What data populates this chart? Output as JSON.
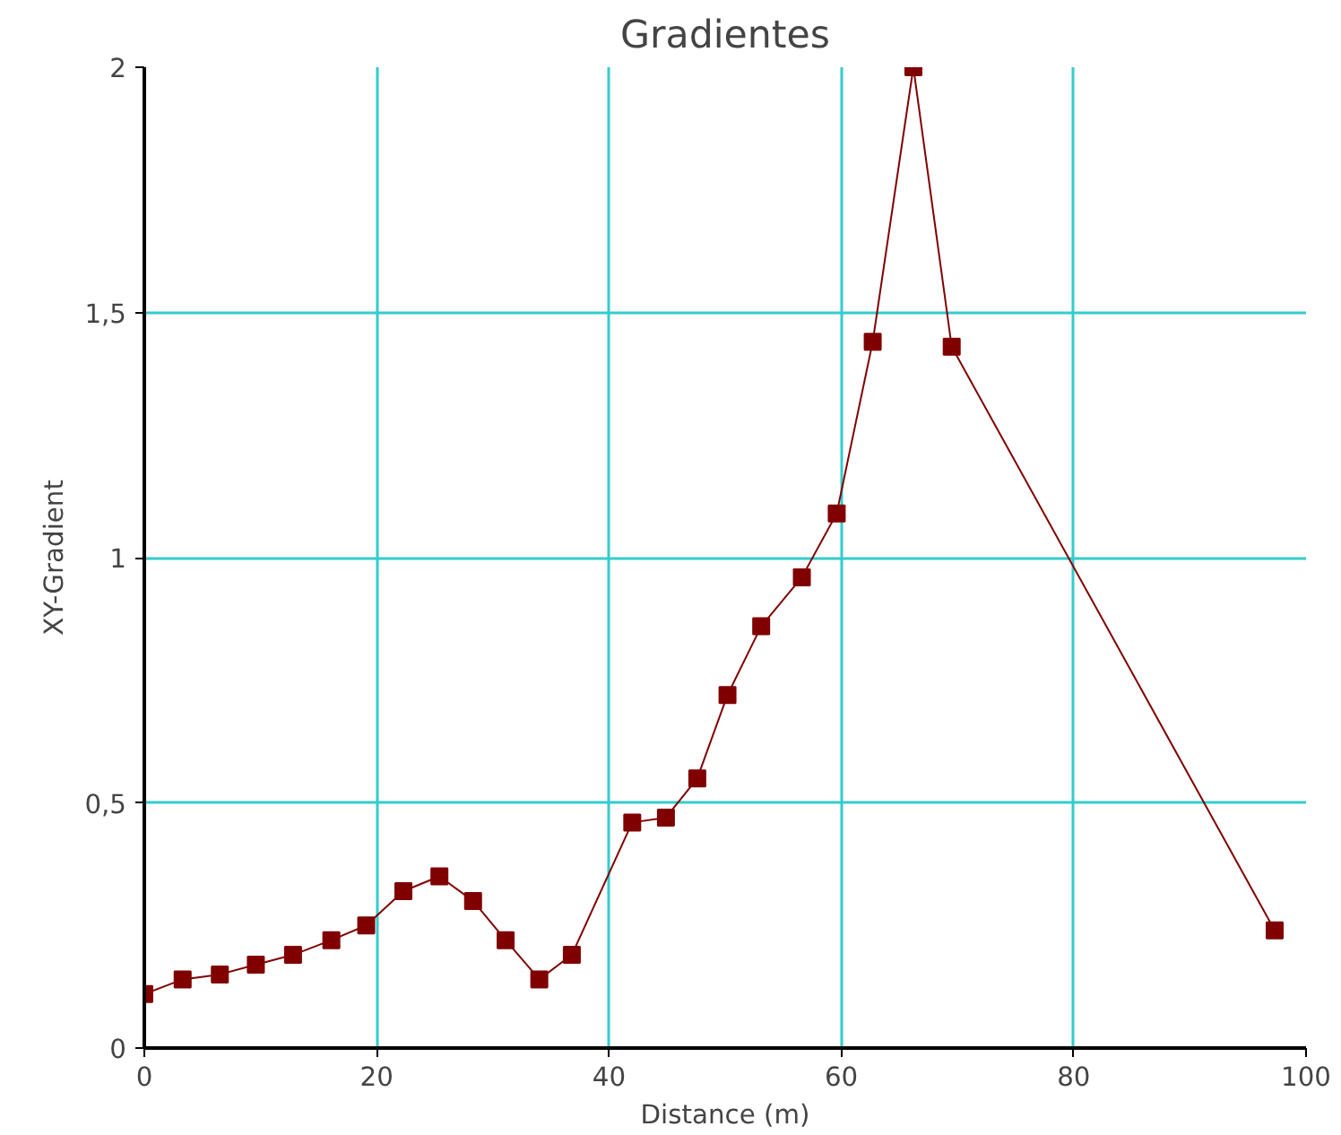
{
  "chart_data": {
    "type": "line",
    "title": "Gradientes",
    "xlabel": "Distance (m)",
    "ylabel": "XY-Gradient",
    "x": [
      0,
      3.3,
      6.5,
      9.6,
      12.8,
      16.1,
      19.1,
      22.3,
      25.4,
      28.3,
      31.1,
      34.0,
      36.8,
      42.0,
      44.9,
      47.6,
      50.2,
      53.1,
      56.6,
      59.6,
      62.7,
      66.2,
      69.5,
      97.3
    ],
    "series": [
      {
        "color": "#800000",
        "values": [
          0.11,
          0.14,
          0.15,
          0.17,
          0.19,
          0.22,
          0.25,
          0.32,
          0.35,
          0.3,
          0.22,
          0.14,
          0.19,
          0.46,
          0.47,
          0.55,
          0.72,
          0.86,
          0.96,
          1.09,
          1.44,
          2.0,
          1.43,
          0.24
        ]
      }
    ],
    "xlim": [
      0,
      100
    ],
    "xticks": [
      0,
      20,
      40,
      60,
      80,
      100
    ],
    "ylim": [
      0,
      2
    ],
    "yticks": [
      0,
      {
        "value": 0.5,
        "label": "0,5"
      },
      1,
      {
        "value": 1.5,
        "label": "1,5"
      },
      2
    ],
    "grid": true,
    "marker": "square",
    "line_style": "solid"
  }
}
